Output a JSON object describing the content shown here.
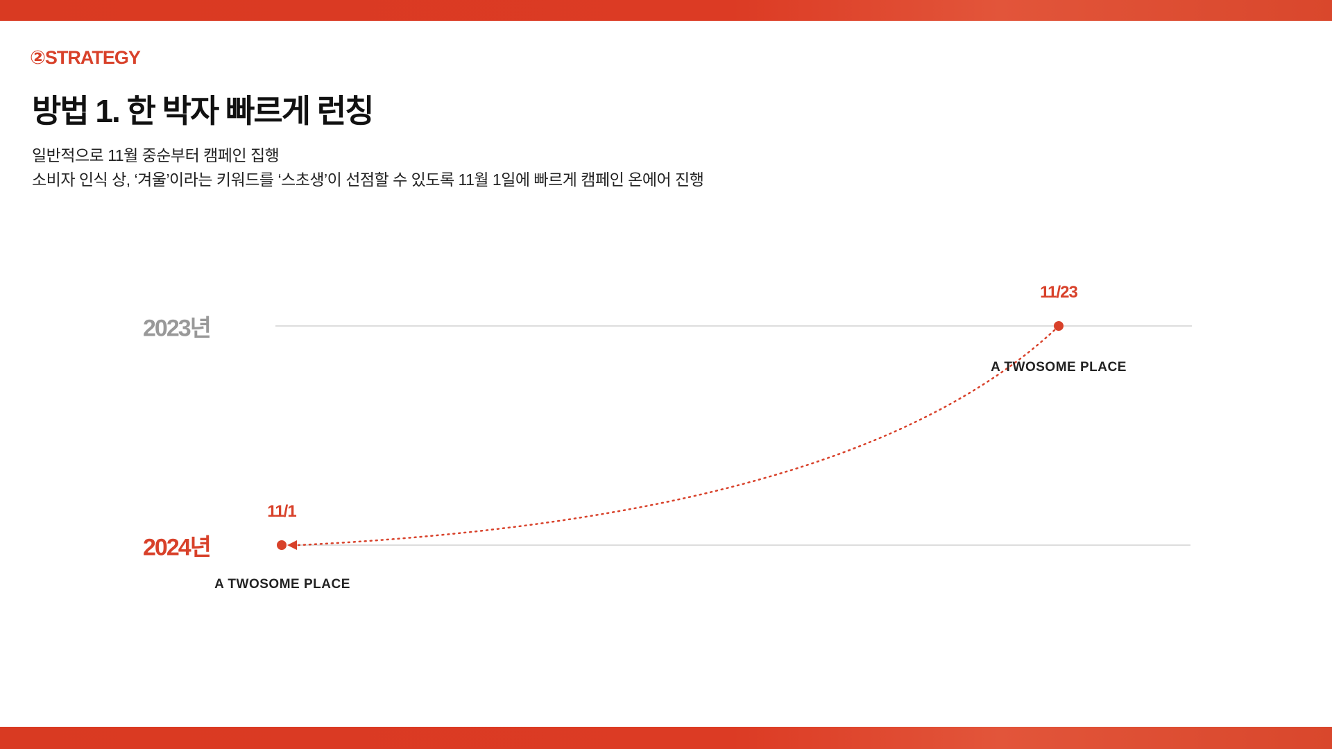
{
  "header": {
    "section_label": "②STRATEGY",
    "title": "방법 1. 한 박자 빠르게 런칭",
    "subtitle_lines": [
      "일반적으로 11월 중순부터 캠페인 집행",
      "소비자 인식 상, ‘겨울’이라는 키워드를 ‘스초생’이 선점할 수 있도록 11월 1일에 빠르게 캠페인 온에어 진행"
    ]
  },
  "timeline": {
    "rows": [
      {
        "year": "2023년",
        "date": "11/23",
        "brand": "A TWOSOME PLACE",
        "year_color": "#999999"
      },
      {
        "year": "2024년",
        "date": "11/1",
        "brand": "A TWOSOME PLACE",
        "year_color": "#d8412a"
      }
    ],
    "arrow_direction": "from 2023 11/23 to 2024 11/1",
    "accent_color": "#d8412a",
    "line_color": "#dddddd"
  }
}
